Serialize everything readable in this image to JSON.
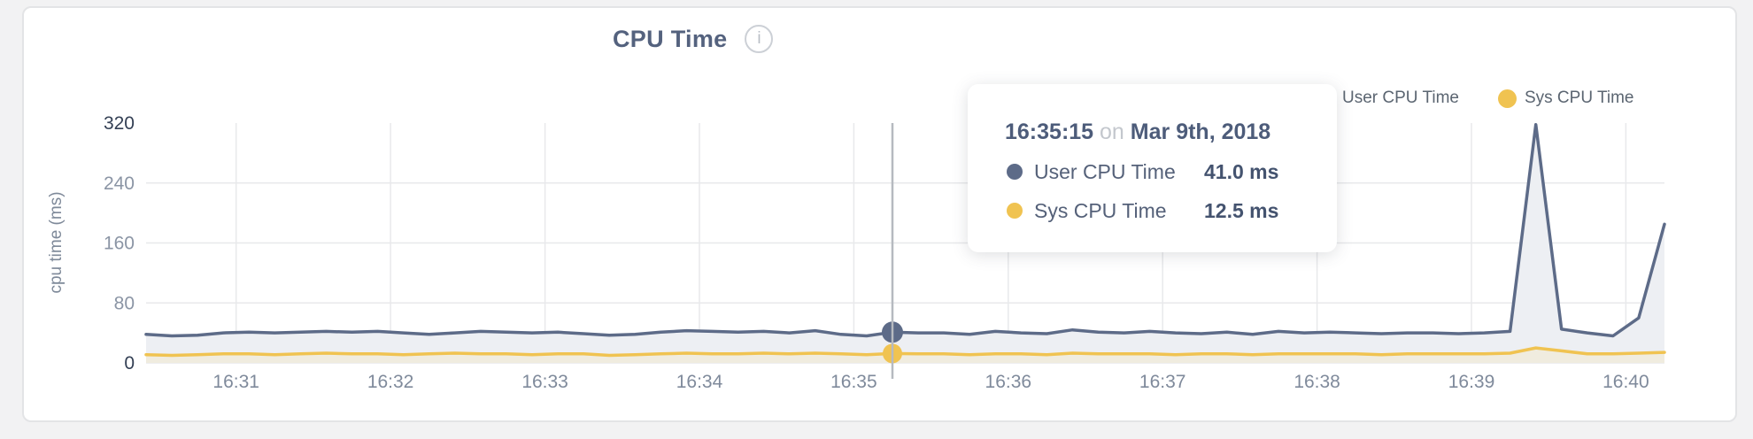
{
  "header": {
    "title": "CPU Time",
    "info_glyph": "i"
  },
  "legend": [
    {
      "label": "User CPU Time",
      "color": "#5d6b88"
    },
    {
      "label": "Sys CPU Time",
      "color": "#f0c351"
    }
  ],
  "tooltip": {
    "time": "16:35:15",
    "preposition": "on",
    "date": "Mar 9th, 2018",
    "rows": [
      {
        "label": "User CPU Time",
        "value": "41.0 ms",
        "color": "#5d6b88"
      },
      {
        "label": "Sys CPU Time",
        "value": "12.5 ms",
        "color": "#f0c351"
      }
    ]
  },
  "chart_data": {
    "type": "area",
    "title": "CPU Time",
    "xlabel": "",
    "ylabel": "cpu time (ms)",
    "ylim": [
      0,
      320
    ],
    "yticks": [
      0,
      80,
      160,
      240,
      320
    ],
    "xticks": [
      "16:31",
      "16:32",
      "16:33",
      "16:34",
      "16:35",
      "16:36",
      "16:37",
      "16:38",
      "16:39",
      "16:40"
    ],
    "x_start": "16:30:25",
    "x_end": "16:40:15",
    "interval_seconds": 10,
    "grid": true,
    "legend_position": "top-right",
    "series": [
      {
        "name": "User CPU Time",
        "color": "#5d6b88",
        "fill": "#edeff3",
        "values": [
          38,
          36,
          37,
          40,
          41,
          40,
          41,
          42,
          41,
          42,
          40,
          38,
          40,
          42,
          41,
          40,
          41,
          39,
          37,
          38,
          41,
          43,
          42,
          41,
          42,
          40,
          43,
          38,
          36,
          41,
          40,
          40,
          38,
          42,
          40,
          39,
          44,
          41,
          40,
          42,
          40,
          39,
          41,
          38,
          42,
          40,
          41,
          40,
          39,
          40,
          40,
          39,
          40,
          42,
          318,
          45,
          40,
          36,
          60,
          185
        ]
      },
      {
        "name": "Sys CPU Time",
        "color": "#f0c351",
        "fill": "#f0ecdf",
        "values": [
          11,
          10,
          11,
          12,
          12,
          11,
          12,
          13,
          12,
          12,
          11,
          12,
          13,
          12,
          12,
          11,
          12,
          12,
          10,
          11,
          12,
          13,
          12,
          12,
          13,
          12,
          13,
          12,
          11,
          12.5,
          12,
          12,
          11,
          12,
          12,
          11,
          13,
          12,
          12,
          12,
          11,
          12,
          12,
          11,
          12,
          12,
          12,
          12,
          11,
          12,
          12,
          12,
          12,
          13,
          20,
          16,
          12,
          12,
          13,
          14
        ]
      }
    ],
    "hover": {
      "index": 29,
      "time": "16:35:15",
      "user_ms": 41.0,
      "sys_ms": 12.5
    }
  }
}
